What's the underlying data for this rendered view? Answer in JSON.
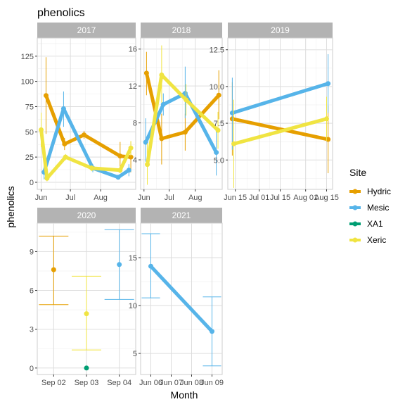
{
  "chart_data": {
    "type": "line",
    "title": "phenolics",
    "xlabel": "Month",
    "ylabel": "phenolics",
    "legend": {
      "title": "Site",
      "placement": "right",
      "entries": [
        {
          "name": "Hydric",
          "color": "#E69F00"
        },
        {
          "name": "Mesic",
          "color": "#56B4E9"
        },
        {
          "name": "XA1",
          "color": "#009E73"
        },
        {
          "name": "Xeric",
          "color": "#F0E442"
        }
      ]
    },
    "grid": true,
    "panels": [
      {
        "title": "2017",
        "x_type": "date",
        "xlim": [
          "2017-05-28",
          "2017-09-06"
        ],
        "x_ticks": [
          {
            "value": "2017-06-01",
            "label": "Jun"
          },
          {
            "value": "2017-07-01",
            "label": "Jul"
          },
          {
            "value": "2017-08-01",
            "label": "Aug"
          }
        ],
        "ylim": [
          -7,
          143
        ],
        "y_ticks": [
          0,
          25,
          50,
          75,
          100,
          125
        ],
        "series": [
          {
            "name": "Hydric",
            "points": [
              {
                "x": "2017-06-06",
                "y": 86,
                "lo": 48,
                "hi": 124
              },
              {
                "x": "2017-06-25",
                "y": 38,
                "lo": 32,
                "hi": 44
              },
              {
                "x": "2017-07-15",
                "y": 47,
                "lo": 43,
                "hi": 51
              },
              {
                "x": "2017-08-21",
                "y": 26,
                "lo": 12,
                "hi": 40
              },
              {
                "x": "2017-09-01",
                "y": 25,
                "lo": 10,
                "hi": 40
              }
            ]
          },
          {
            "name": "Mesic",
            "points": [
              {
                "x": "2017-06-04",
                "y": 10,
                "lo": 3,
                "hi": 17
              },
              {
                "x": "2017-06-24",
                "y": 73,
                "lo": 55,
                "hi": 90
              },
              {
                "x": "2017-07-24",
                "y": 14,
                "lo": 10,
                "hi": 18
              },
              {
                "x": "2017-08-19",
                "y": 5,
                "lo": 3,
                "hi": 7
              },
              {
                "x": "2017-08-30",
                "y": 12,
                "lo": 6,
                "hi": 18
              }
            ]
          },
          {
            "name": "Xeric",
            "points": [
              {
                "x": "2017-06-01",
                "y": 52,
                "lo": 35,
                "hi": 69
              },
              {
                "x": "2017-06-07",
                "y": 4,
                "lo": 1,
                "hi": 8
              },
              {
                "x": "2017-06-26",
                "y": 25,
                "lo": 22,
                "hi": 28
              },
              {
                "x": "2017-07-23",
                "y": 14,
                "lo": 11,
                "hi": 17
              },
              {
                "x": "2017-08-21",
                "y": 12,
                "lo": 9,
                "hi": 15
              },
              {
                "x": "2017-09-01",
                "y": 34,
                "lo": 26,
                "hi": 41
              }
            ]
          }
        ]
      },
      {
        "title": "2018",
        "x_type": "date",
        "xlim": [
          "2018-05-28",
          "2018-09-02"
        ],
        "x_ticks": [
          {
            "value": "2018-06-01",
            "label": "Jun"
          },
          {
            "value": "2018-07-01",
            "label": "Jul"
          },
          {
            "value": "2018-08-01",
            "label": "Aug"
          }
        ],
        "ylim": [
          0.8,
          17.2
        ],
        "y_ticks": [
          4,
          8,
          12,
          16
        ],
        "series": [
          {
            "name": "Hydric",
            "points": [
              {
                "x": "2018-06-04",
                "y": 13.4,
                "lo": 11,
                "hi": 15.7
              },
              {
                "x": "2018-06-22",
                "y": 6.3,
                "lo": 3.5,
                "hi": 9
              },
              {
                "x": "2018-07-20",
                "y": 7,
                "lo": 5,
                "hi": 9
              },
              {
                "x": "2018-08-29",
                "y": 11,
                "lo": 8.4,
                "hi": 13.7
              }
            ]
          },
          {
            "name": "Mesic",
            "points": [
              {
                "x": "2018-06-03",
                "y": 5.9,
                "lo": 3.8,
                "hi": 8.5
              },
              {
                "x": "2018-06-24",
                "y": 10,
                "lo": 8.8,
                "hi": 11.2
              },
              {
                "x": "2018-07-20",
                "y": 11.2,
                "lo": 8.5,
                "hi": 14.1
              },
              {
                "x": "2018-08-26",
                "y": 4.8,
                "lo": 2.3,
                "hi": 7.3
              }
            ]
          },
          {
            "name": "Xeric",
            "points": [
              {
                "x": "2018-06-05",
                "y": 3.5,
                "lo": 1.3,
                "hi": 5.8
              },
              {
                "x": "2018-06-22",
                "y": 13.2,
                "lo": 10.2,
                "hi": 16.4
              },
              {
                "x": "2018-07-21",
                "y": 10.5,
                "lo": 8.8,
                "hi": 12.2
              },
              {
                "x": "2018-08-28",
                "y": 7.2,
                "lo": 5.2,
                "hi": 9.2
              }
            ]
          }
        ]
      },
      {
        "title": "2019",
        "x_type": "date",
        "xlim": [
          "2019-06-10",
          "2019-08-19"
        ],
        "x_ticks": [
          {
            "value": "2019-06-15",
            "label": "Jun 15"
          },
          {
            "value": "2019-07-01",
            "label": "Jul 01"
          },
          {
            "value": "2019-07-15",
            "label": "Jul 15"
          },
          {
            "value": "2019-08-01",
            "label": "Aug 01"
          },
          {
            "value": "2019-08-15",
            "label": "Aug 15"
          }
        ],
        "ylim": [
          3,
          13.3
        ],
        "y_ticks": [
          5.0,
          7.5,
          10.0,
          12.5
        ],
        "y_tick_labels": [
          "5.0",
          "7.5",
          "10.0",
          "12.5"
        ],
        "series": [
          {
            "name": "Hydric",
            "points": [
              {
                "x": "2019-06-13",
                "y": 7.8,
                "lo": 5.3,
                "hi": 10.3
              },
              {
                "x": "2019-08-16",
                "y": 6.4,
                "lo": 4.1,
                "hi": 8.7
              }
            ]
          },
          {
            "name": "Mesic",
            "points": [
              {
                "x": "2019-06-13",
                "y": 8.2,
                "lo": 5.7,
                "hi": 10.6
              },
              {
                "x": "2019-08-16",
                "y": 10.2,
                "lo": 8.2,
                "hi": 12.2
              }
            ]
          },
          {
            "name": "Xeric",
            "points": [
              {
                "x": "2019-06-14",
                "y": 6.1,
                "lo": 3.1,
                "hi": 9.1
              },
              {
                "x": "2019-08-15",
                "y": 7.8,
                "lo": 6.3,
                "hi": 9.3
              }
            ]
          }
        ]
      },
      {
        "title": "2020",
        "x_type": "category",
        "categories": [
          "Sep 02",
          "Sep 03",
          "Sep 04"
        ],
        "ylim": [
          -0.5,
          11.2
        ],
        "y_ticks": [
          0,
          3,
          6,
          9
        ],
        "series": [
          {
            "name": "Hydric",
            "points": [
              {
                "x": "Sep 02",
                "y": 7.6,
                "lo": 4.9,
                "hi": 10.2
              }
            ]
          },
          {
            "name": "Xeric",
            "points": [
              {
                "x": "Sep 03",
                "y": 4.2,
                "lo": 1.4,
                "hi": 7.1
              }
            ]
          },
          {
            "name": "XA1",
            "points": [
              {
                "x": "Sep 03",
                "y": 0,
                "lo": 0,
                "hi": 0
              }
            ]
          },
          {
            "name": "Mesic",
            "points": [
              {
                "x": "Sep 04",
                "y": 8,
                "lo": 5.3,
                "hi": 10.7
              }
            ]
          }
        ]
      },
      {
        "title": "2021",
        "x_type": "category",
        "categories": [
          "Jun 06",
          "Jun 07",
          "Jun 08",
          "Jun 09"
        ],
        "ylim": [
          2.8,
          18.6
        ],
        "y_ticks": [
          5,
          10,
          15
        ],
        "series": [
          {
            "name": "Mesic",
            "points": [
              {
                "x": "Jun 06",
                "y": 14.1,
                "lo": 10.8,
                "hi": 17.5
              },
              {
                "x": "Jun 09",
                "y": 7.3,
                "lo": 3.7,
                "hi": 10.9
              }
            ]
          }
        ]
      }
    ]
  }
}
